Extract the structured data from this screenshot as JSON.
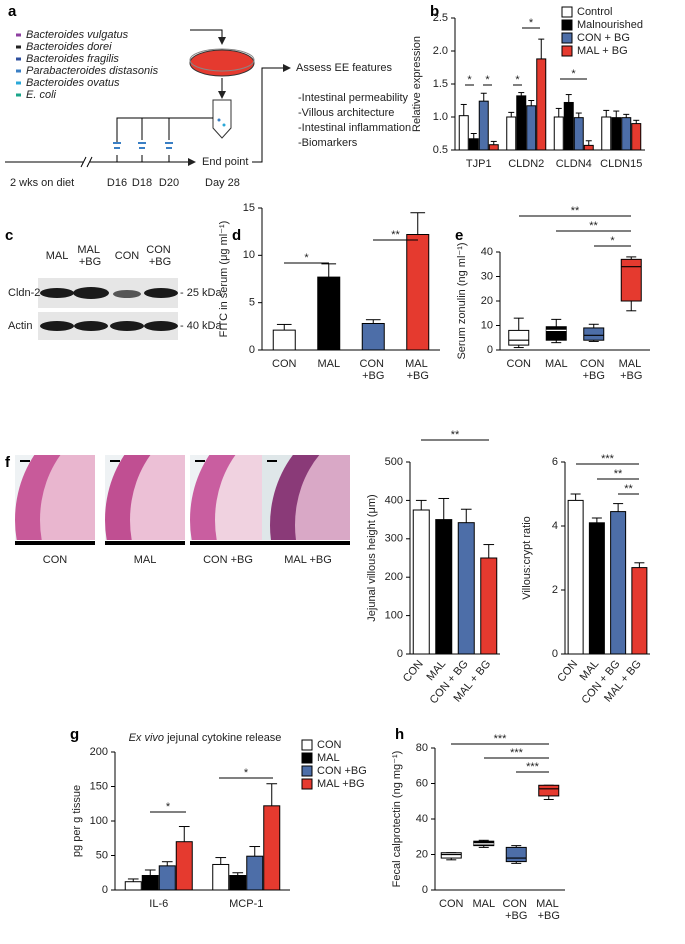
{
  "diagram_a": {
    "panel": "a",
    "bacteria": [
      {
        "name": "Bacteroides vulgatus",
        "color": "#8e3fa0"
      },
      {
        "name": "Bacteroides dorei",
        "color": "#222222"
      },
      {
        "name": "Bacteroides fragilis",
        "color": "#2e4f9e"
      },
      {
        "name": "Parabacteroides distasonis",
        "color": "#3a7fc4"
      },
      {
        "name": "Bacteroides ovatus",
        "color": "#2aa8d8"
      },
      {
        "name": "E. coli",
        "color": "#1aa58a"
      }
    ],
    "assess": "Assess EE features",
    "features": [
      "-Intestinal permeability",
      "-Villous architecture",
      "-Intestinal inflammation",
      "-Biomarkers"
    ],
    "timeline": {
      "diet": "2 wks on diet",
      "doses": [
        "D16",
        "D18",
        "D20"
      ],
      "end": "End point",
      "end_day": "Day 28"
    }
  },
  "blot_c": {
    "panel": "c",
    "lanes": [
      "MAL",
      "MAL +BG",
      "CON",
      "CON +BG"
    ],
    "rows": [
      "Cldn-2",
      "Actin"
    ],
    "markers": [
      "- 25 kDa",
      "- 40 kDa"
    ]
  },
  "histology_f": {
    "panel": "f",
    "labels": [
      "CON",
      "MAL",
      "CON +BG",
      "MAL +BG"
    ]
  },
  "chart_data": [
    {
      "type": "groupbar",
      "panel": "b",
      "ylabel": "Relative expression",
      "categories": [
        "TJP1",
        "CLDN2",
        "CLDN4",
        "CLDN15"
      ],
      "series": [
        {
          "name": "Control",
          "color": "#ffffff",
          "values": [
            1.02,
            1.0,
            1.0,
            1.0
          ],
          "errors": [
            0.17,
            0.07,
            0.13,
            0.1
          ]
        },
        {
          "name": "Malnourished",
          "color": "#000000",
          "values": [
            0.67,
            1.32,
            1.22,
            0.99
          ],
          "errors": [
            0.08,
            0.05,
            0.12,
            0.1
          ]
        },
        {
          "name": "CON + BG",
          "color": "#4d6ea8",
          "values": [
            1.24,
            1.17,
            0.99,
            0.99
          ],
          "errors": [
            0.12,
            0.08,
            0.07,
            0.05
          ]
        },
        {
          "name": "MAL + BG",
          "color": "#e53a2f",
          "values": [
            0.58,
            1.88,
            0.57,
            0.9
          ],
          "errors": [
            0.05,
            0.3,
            0.07,
            0.05
          ]
        }
      ],
      "ylim": [
        0.5,
        2.5
      ],
      "yticks": [
        0.5,
        {
          "value": 1.0,
          "label": "1.0"
        },
        1.5,
        {
          "value": 2.0,
          "label": "2.0"
        },
        2.5
      ],
      "annotations": [
        "*",
        "*",
        "*",
        "*",
        "*"
      ]
    },
    {
      "type": "bar",
      "panel": "d",
      "ylabel": "FITC in serum (μg ml⁻¹)",
      "categories": [
        "CON",
        "MAL",
        "CON +BG",
        "MAL +BG"
      ],
      "colors": [
        "#ffffff",
        "#000000",
        "#4d6ea8",
        "#e53a2f"
      ],
      "values": [
        2.1,
        7.7,
        2.8,
        12.2
      ],
      "errors": [
        0.6,
        1.4,
        0.4,
        2.3
      ],
      "ylim": [
        0,
        15
      ],
      "yticks": [
        0,
        5,
        10,
        15
      ],
      "annotations": [
        "*",
        "**"
      ]
    },
    {
      "type": "box",
      "panel": "e",
      "ylabel": "Serum zonulin (ng ml⁻¹)",
      "categories": [
        "CON",
        "MAL",
        "CON +BG",
        "MAL +BG"
      ],
      "colors": [
        "#ffffff",
        "#000000",
        "#4d6ea8",
        "#e53a2f"
      ],
      "boxes": [
        {
          "min": 1,
          "q1": 2,
          "median": 4,
          "q3": 8,
          "max": 13
        },
        {
          "min": 3,
          "q1": 4,
          "median": 8,
          "q3": 9.5,
          "max": 12.5
        },
        {
          "min": 3.5,
          "q1": 4,
          "median": 6,
          "q3": 9,
          "max": 10.5
        },
        {
          "min": 16,
          "q1": 20,
          "median": 34,
          "q3": 37,
          "max": 38
        }
      ],
      "ylim": [
        0,
        40
      ],
      "yticks": [
        0,
        10,
        20,
        30,
        40
      ],
      "annotations": [
        "**",
        "**",
        "*"
      ]
    },
    {
      "type": "bar",
      "ylabel": "Jejunal villous height (μm)",
      "categories": [
        "CON",
        "MAL",
        "CON + BG",
        "MAL + BG"
      ],
      "colors": [
        "#ffffff",
        "#000000",
        "#4d6ea8",
        "#e53a2f"
      ],
      "values": [
        375,
        350,
        342,
        250
      ],
      "errors": [
        25,
        55,
        35,
        35
      ],
      "ylim": [
        0,
        500
      ],
      "yticks": [
        0,
        100,
        200,
        300,
        400,
        500
      ],
      "annotations": [
        "**"
      ]
    },
    {
      "type": "bar",
      "ylabel": "Villous:crypt ratio",
      "categories": [
        "CON",
        "MAL",
        "CON + BG",
        "MAL + BG"
      ],
      "colors": [
        "#ffffff",
        "#000000",
        "#4d6ea8",
        "#e53a2f"
      ],
      "values": [
        4.8,
        4.1,
        4.45,
        2.7
      ],
      "errors": [
        0.2,
        0.15,
        0.25,
        0.15
      ],
      "ylim": [
        0,
        6
      ],
      "yticks": [
        0,
        2,
        4,
        6
      ],
      "annotations": [
        "***",
        "**",
        "**"
      ]
    },
    {
      "type": "groupbar",
      "panel": "g",
      "title": "Ex vivo jejunal cytokine release",
      "ylabel": "pg per g tissue",
      "categories": [
        "IL-6",
        "MCP-1"
      ],
      "series": [
        {
          "name": "CON",
          "color": "#ffffff",
          "values": [
            12,
            37
          ],
          "errors": [
            4,
            10
          ]
        },
        {
          "name": "MAL",
          "color": "#000000",
          "values": [
            21,
            21
          ],
          "errors": [
            8,
            4
          ]
        },
        {
          "name": "CON +BG",
          "color": "#4d6ea8",
          "values": [
            35,
            49
          ],
          "errors": [
            6,
            14
          ]
        },
        {
          "name": "MAL +BG",
          "color": "#e53a2f",
          "values": [
            70,
            122
          ],
          "errors": [
            22,
            32
          ]
        }
      ],
      "ylim": [
        0,
        200
      ],
      "yticks": [
        0,
        50,
        100,
        150,
        200
      ],
      "annotations": [
        "*",
        "*"
      ]
    },
    {
      "type": "box",
      "panel": "h",
      "ylabel": "Fecal calprotectin (ng mg⁻¹)",
      "categories": [
        "CON",
        "MAL",
        "CON +BG",
        "MAL +BG"
      ],
      "colors": [
        "#ffffff",
        "#000000",
        "#4d6ea8",
        "#e53a2f"
      ],
      "boxes": [
        {
          "min": 17,
          "q1": 18,
          "median": 20,
          "q3": 21,
          "max": 21
        },
        {
          "min": 24,
          "q1": 25,
          "median": 26,
          "q3": 27.5,
          "max": 28
        },
        {
          "min": 15,
          "q1": 16,
          "median": 18,
          "q3": 24,
          "max": 25
        },
        {
          "min": 51,
          "q1": 53,
          "median": 57,
          "q3": 59,
          "max": 59
        }
      ],
      "ylim": [
        0,
        80
      ],
      "yticks": [
        0,
        20,
        40,
        60,
        80
      ],
      "annotations": [
        "***",
        "***",
        "***"
      ]
    }
  ]
}
